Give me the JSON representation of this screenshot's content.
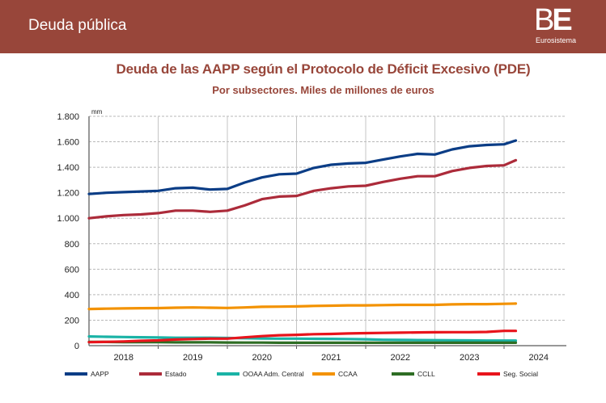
{
  "header": {
    "title": "Deuda pública",
    "logo": {
      "letters_b": "B",
      "letters_e": "E",
      "subtitle": "Eurosistema"
    }
  },
  "chart_data": {
    "type": "line",
    "title": "Deuda de las AAPP según el Protocolo de Déficit Excesivo (PDE)",
    "subtitle": "Por subsectores. Miles de millones de euros",
    "ylabel": "mm",
    "xlabel": "",
    "ylim": [
      0,
      1800
    ],
    "yticks": [
      0,
      200,
      400,
      600,
      800,
      1000,
      1200,
      1400,
      1600,
      1800
    ],
    "ytick_labels": [
      "0",
      "200",
      "400",
      "600",
      "800",
      "1.000",
      "1.200",
      "1.400",
      "1.600",
      "1.800"
    ],
    "xlim": [
      2018.0,
      2025.0
    ],
    "xtick_labels": [
      "2018",
      "2019",
      "2020",
      "2021",
      "2022",
      "2023",
      "2024"
    ],
    "grid": {
      "horizontal": "dashed",
      "vertical": "year-separators"
    },
    "legend_position": "bottom",
    "x": [
      2018.0,
      2018.25,
      2018.5,
      2018.75,
      2019.0,
      2019.25,
      2019.5,
      2019.75,
      2020.0,
      2020.25,
      2020.5,
      2020.75,
      2021.0,
      2021.25,
      2021.5,
      2021.75,
      2022.0,
      2022.25,
      2022.5,
      2022.75,
      2023.0,
      2023.25,
      2023.5,
      2023.75,
      2024.0,
      2024.17
    ],
    "series": [
      {
        "name": "AAPP",
        "color": "#0b3d86",
        "values": [
          1190,
          1200,
          1205,
          1210,
          1215,
          1235,
          1240,
          1225,
          1230,
          1280,
          1320,
          1345,
          1350,
          1395,
          1420,
          1430,
          1435,
          1460,
          1485,
          1505,
          1500,
          1540,
          1565,
          1575,
          1580,
          1610
        ]
      },
      {
        "name": "Estado",
        "color": "#ac2b3a",
        "values": [
          1000,
          1015,
          1025,
          1030,
          1040,
          1060,
          1060,
          1050,
          1060,
          1100,
          1150,
          1170,
          1175,
          1215,
          1235,
          1250,
          1255,
          1285,
          1310,
          1330,
          1330,
          1370,
          1395,
          1410,
          1415,
          1455
        ]
      },
      {
        "name": "OOAA Adm. Central",
        "color": "#1ab3a6",
        "values": [
          72,
          70,
          68,
          66,
          64,
          62,
          62,
          62,
          60,
          58,
          56,
          55,
          55,
          54,
          53,
          52,
          50,
          46,
          45,
          44,
          43,
          42,
          41,
          40,
          40,
          40
        ]
      },
      {
        "name": "CCAA",
        "color": "#f39200",
        "values": [
          288,
          290,
          292,
          294,
          295,
          298,
          300,
          298,
          296,
          300,
          305,
          306,
          308,
          312,
          314,
          316,
          316,
          318,
          320,
          320,
          320,
          324,
          326,
          326,
          328,
          330
        ]
      },
      {
        "name": "CCLL",
        "color": "#2e6d24",
        "values": [
          29,
          29,
          28,
          27,
          27,
          26,
          26,
          26,
          25,
          24,
          24,
          23,
          23,
          23,
          23,
          23,
          23,
          23,
          23,
          23,
          23,
          23,
          23,
          23,
          23,
          23
        ]
      },
      {
        "name": "Seg. Social",
        "color": "#e8141c",
        "values": [
          27,
          30,
          33,
          38,
          41,
          48,
          52,
          55,
          55,
          65,
          75,
          82,
          85,
          90,
          92,
          96,
          98,
          100,
          102,
          104,
          105,
          106,
          106,
          108,
          116,
          116
        ]
      }
    ]
  }
}
